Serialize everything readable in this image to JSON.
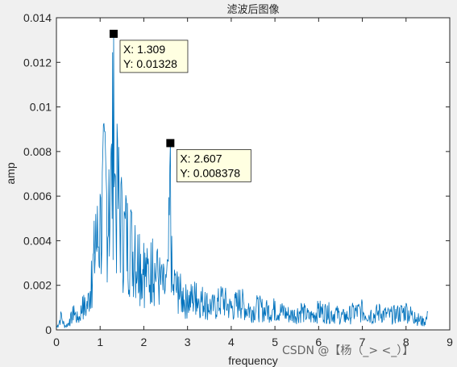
{
  "chart_data": {
    "type": "line",
    "title": "滤波后图像",
    "xlabel": "frequency",
    "ylabel": "amp",
    "xlim": [
      0,
      9
    ],
    "ylim": [
      0,
      0.014
    ],
    "x_ticks": [
      0,
      1,
      2,
      3,
      4,
      5,
      6,
      7,
      8,
      9
    ],
    "y_ticks": [
      0,
      0.002,
      0.004,
      0.006,
      0.008,
      0.01,
      0.012,
      0.014
    ],
    "y_tick_labels": [
      "0",
      "0.002",
      "0.004",
      "0.006",
      "0.008",
      "0.01",
      "0.012",
      "0.014"
    ],
    "grid": false,
    "series": [
      {
        "color": "#0072bd",
        "x": [
          0.0,
          0.1,
          0.2,
          0.3,
          0.4,
          0.5,
          0.6,
          0.7,
          0.8,
          0.9,
          1.0,
          1.1,
          1.2,
          1.25,
          1.309,
          1.35,
          1.4,
          1.5,
          1.6,
          1.7,
          1.8,
          1.9,
          2.0,
          2.1,
          2.2,
          2.3,
          2.4,
          2.5,
          2.55,
          2.607,
          2.65,
          2.7,
          2.8,
          2.9,
          3.0,
          3.2,
          3.4,
          3.6,
          3.8,
          4.0,
          4.2,
          4.4,
          4.6,
          4.8,
          5.0,
          5.2,
          5.4,
          5.6,
          5.8,
          6.0,
          6.2,
          6.4,
          6.6,
          6.8,
          7.0,
          7.2,
          7.4,
          7.6,
          7.8,
          8.0,
          8.2,
          8.4,
          8.5
        ],
        "y": [
          0.0001,
          0.0008,
          0.0002,
          0.0005,
          0.0011,
          0.0006,
          0.0015,
          0.0013,
          0.0031,
          0.0052,
          0.0061,
          0.0089,
          0.0072,
          0.0081,
          0.01328,
          0.0069,
          0.0085,
          0.0062,
          0.0058,
          0.0054,
          0.0047,
          0.0043,
          0.0039,
          0.0032,
          0.0041,
          0.0035,
          0.0028,
          0.0025,
          0.0031,
          0.008378,
          0.0022,
          0.0027,
          0.0024,
          0.0019,
          0.0018,
          0.0021,
          0.0017,
          0.0014,
          0.0019,
          0.0013,
          0.0018,
          0.0012,
          0.0014,
          0.0012,
          0.0013,
          0.0011,
          0.0009,
          0.0012,
          0.0008,
          0.0012,
          0.0011,
          0.001,
          0.0008,
          0.0011,
          0.0012,
          0.0009,
          0.0011,
          0.0009,
          0.001,
          0.0012,
          0.0008,
          0.0005,
          0.0008
        ]
      }
    ],
    "datatips": [
      {
        "x": 1.309,
        "y": 0.01328,
        "x_text": "X: 1.309",
        "y_text": "Y: 0.01328"
      },
      {
        "x": 2.607,
        "y": 0.008378,
        "x_text": "X: 2.607",
        "y_text": "Y: 0.008378"
      }
    ]
  },
  "watermark": "CSDN @【杨（_> <_）】"
}
